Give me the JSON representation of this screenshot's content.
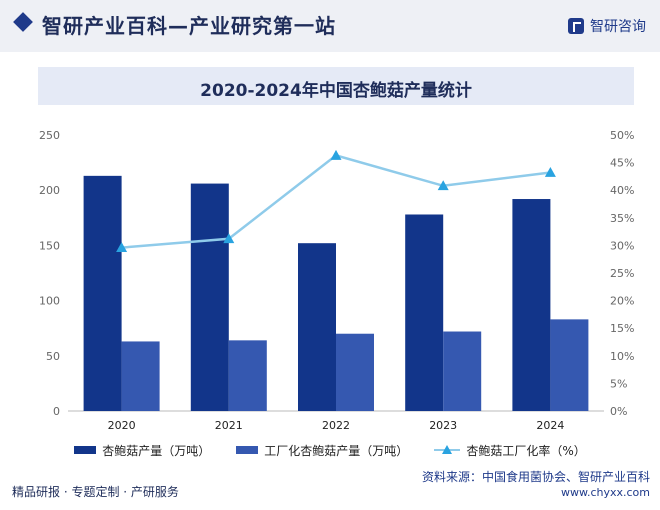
{
  "header": {
    "title": "智研产业百科—产业研究第一站",
    "brand": "智研咨询"
  },
  "colors": {
    "bar_primary": "#12358a",
    "bar_secondary": "#3558b0",
    "line": "#8fcbea",
    "marker": "#29a3e0"
  },
  "chart_data": {
    "type": "bar",
    "title": "2020-2024年中国杏鲍菇产量统计",
    "categories": [
      "2020",
      "2021",
      "2022",
      "2023",
      "2024"
    ],
    "series": [
      {
        "name": "杏鲍菇产量（万吨）",
        "type": "bar",
        "axis": "left",
        "values": [
          213,
          206,
          152,
          178,
          192
        ]
      },
      {
        "name": "工厂化杏鲍菇产量（万吨）",
        "type": "bar",
        "axis": "left",
        "values": [
          63,
          64,
          70,
          72,
          83
        ]
      },
      {
        "name": "杏鲍菇工厂化率（%）",
        "type": "line",
        "axis": "right",
        "values": [
          29.6,
          31.2,
          46.3,
          40.8,
          43.2
        ]
      }
    ],
    "y_left": {
      "min": 0,
      "max": 250,
      "ticks": [
        "0",
        "50",
        "100",
        "150",
        "200",
        "250"
      ]
    },
    "y_right": {
      "min": 0,
      "max": 50,
      "ticks": [
        "0%",
        "5%",
        "10%",
        "15%",
        "20%",
        "25%",
        "30%",
        "35%",
        "40%",
        "45%",
        "50%"
      ]
    },
    "legend_position": "bottom",
    "grid": false
  },
  "source": "资料来源：中国食用菌协会、智研产业百科",
  "footer": {
    "services": "精品研报 · 专题定制 · 产研服务",
    "site": "www.chyxx.com"
  }
}
